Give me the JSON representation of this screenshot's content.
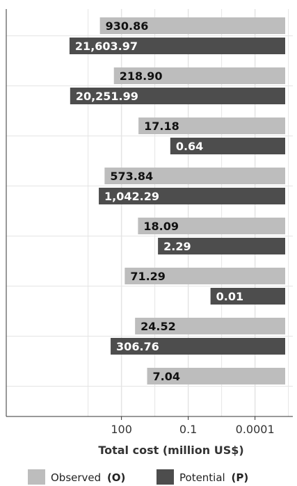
{
  "chart_data": {
    "type": "bar",
    "orientation": "horizontal",
    "x_scale": "log",
    "x_reversed": true,
    "xlabel": "Total cost (million US$)",
    "xticks": [
      {
        "value": 100,
        "label": "100"
      },
      {
        "value": 0.1,
        "label": "0.1"
      },
      {
        "value": 0.0001,
        "label": "0.0001"
      }
    ],
    "xlim": [
      15000000,
      2e-06
    ],
    "grid": true,
    "legend_position": "bottom",
    "colors": {
      "observed": "#bdbdbd",
      "potential": "#4d4d4d",
      "grid": "#e4e4e4",
      "axis": "#333333"
    },
    "series": [
      {
        "key": "observed",
        "legend_label": "Observed",
        "legend_code": "(O)",
        "values": [
          930.86,
          218.9,
          17.18,
          573.84,
          18.09,
          71.29,
          24.52,
          7.04
        ],
        "labels": [
          "930.86",
          "218.90",
          "17.18",
          "573.84",
          "18.09",
          "71.29",
          "24.52",
          "7.04"
        ]
      },
      {
        "key": "potential",
        "legend_label": "Potential",
        "legend_code": "(P)",
        "values": [
          21603.97,
          20251.99,
          0.64,
          1042.29,
          2.29,
          0.01,
          306.76,
          null
        ],
        "labels": [
          "21,603.97",
          "20,251.99",
          "0.64",
          "1,042.29",
          "2.29",
          "0.01",
          "306.76",
          null
        ]
      }
    ]
  }
}
